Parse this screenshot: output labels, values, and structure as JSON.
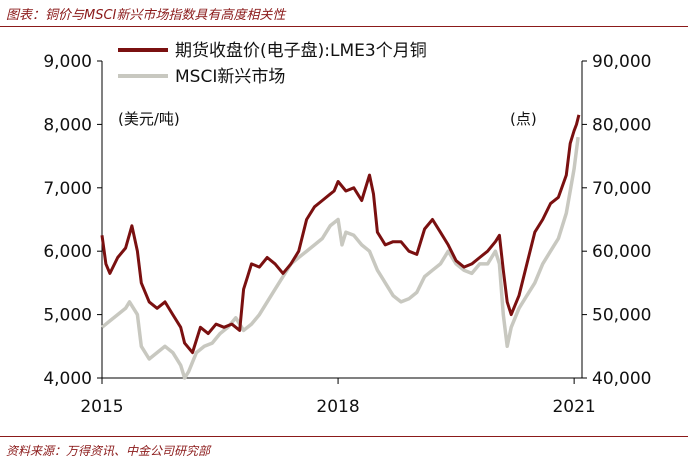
{
  "figure": {
    "title": "图表：铜价与MSCI新兴市场指数具有高度相关性",
    "source": "资料来源：万得资讯、中金公司研究部"
  },
  "colors": {
    "copper": "#7a1010",
    "msci": "#c8c8c0",
    "accent": "#8b1a1a"
  },
  "chart_data": {
    "type": "line",
    "x_ticks": [
      "2015",
      "2018",
      "2021"
    ],
    "x_tick_positions": [
      2015,
      2018,
      2021
    ],
    "xlim": [
      2015,
      2021.1
    ],
    "left_axis": {
      "unit": "(美元/吨)",
      "ylim": [
        4000,
        9000
      ],
      "ticks": [
        "4,000",
        "5,000",
        "6,000",
        "7,000",
        "8,000",
        "9,000"
      ]
    },
    "right_axis": {
      "unit": "(点)",
      "ylim": [
        40000,
        90000
      ],
      "ticks": [
        "40,000",
        "50,000",
        "60,000",
        "70,000",
        "80,000",
        "90,000"
      ]
    },
    "legend": {
      "position": "top-left",
      "entries": [
        "期货收盘价(电子盘):LME3个月铜",
        "MSCI新兴市场"
      ]
    },
    "series": [
      {
        "name": "期货收盘价(电子盘):LME3个月铜",
        "axis": "left",
        "x": [
          2015.0,
          2015.05,
          2015.1,
          2015.2,
          2015.3,
          2015.38,
          2015.45,
          2015.5,
          2015.6,
          2015.7,
          2015.8,
          2015.9,
          2016.0,
          2016.05,
          2016.15,
          2016.25,
          2016.35,
          2016.45,
          2016.55,
          2016.65,
          2016.75,
          2016.8,
          2016.85,
          2016.9,
          2017.0,
          2017.1,
          2017.2,
          2017.3,
          2017.4,
          2017.5,
          2017.6,
          2017.7,
          2017.8,
          2017.9,
          2017.95,
          2018.0,
          2018.1,
          2018.2,
          2018.3,
          2018.4,
          2018.45,
          2018.5,
          2018.6,
          2018.7,
          2018.8,
          2018.9,
          2019.0,
          2019.1,
          2019.2,
          2019.3,
          2019.4,
          2019.5,
          2019.6,
          2019.7,
          2019.8,
          2019.9,
          2020.0,
          2020.05,
          2020.1,
          2020.15,
          2020.2,
          2020.25,
          2020.3,
          2020.4,
          2020.5,
          2020.6,
          2020.7,
          2020.8,
          2020.9,
          2020.95,
          2021.0,
          2021.03,
          2021.06
        ],
        "y": [
          6250,
          5800,
          5650,
          5900,
          6050,
          6400,
          6000,
          5500,
          5200,
          5100,
          5200,
          5000,
          4800,
          4550,
          4400,
          4800,
          4700,
          4850,
          4800,
          4850,
          4750,
          5400,
          5600,
          5800,
          5750,
          5900,
          5800,
          5650,
          5800,
          6000,
          6500,
          6700,
          6800,
          6900,
          6950,
          7100,
          6950,
          7000,
          6800,
          7200,
          6900,
          6300,
          6100,
          6150,
          6150,
          6000,
          5950,
          6350,
          6500,
          6300,
          6100,
          5850,
          5750,
          5800,
          5900,
          6000,
          6150,
          6250,
          5700,
          5200,
          5000,
          5150,
          5300,
          5800,
          6300,
          6500,
          6750,
          6850,
          7200,
          7700,
          7900,
          8000,
          8150
        ]
      },
      {
        "name": "MSCI新兴市场",
        "axis": "right",
        "x": [
          2015.0,
          2015.1,
          2015.2,
          2015.3,
          2015.35,
          2015.45,
          2015.5,
          2015.6,
          2015.7,
          2015.8,
          2015.9,
          2016.0,
          2016.05,
          2016.1,
          2016.2,
          2016.3,
          2016.4,
          2016.5,
          2016.6,
          2016.7,
          2016.8,
          2016.9,
          2017.0,
          2017.1,
          2017.2,
          2017.3,
          2017.4,
          2017.5,
          2017.6,
          2017.7,
          2017.8,
          2017.9,
          2018.0,
          2018.05,
          2018.1,
          2018.2,
          2018.3,
          2018.4,
          2018.5,
          2018.6,
          2018.7,
          2018.8,
          2018.9,
          2019.0,
          2019.1,
          2019.2,
          2019.3,
          2019.4,
          2019.5,
          2019.6,
          2019.7,
          2019.8,
          2019.9,
          2020.0,
          2020.05,
          2020.1,
          2020.15,
          2020.2,
          2020.3,
          2020.4,
          2020.5,
          2020.6,
          2020.7,
          2020.8,
          2020.9,
          2021.0,
          2021.05
        ],
        "y": [
          48000,
          49000,
          50000,
          51000,
          52000,
          50000,
          45000,
          43000,
          44000,
          45000,
          44000,
          42000,
          40000,
          41000,
          44000,
          45000,
          45500,
          47000,
          48000,
          49500,
          47500,
          48500,
          50000,
          52000,
          54000,
          56000,
          58000,
          59000,
          60000,
          61000,
          62000,
          64000,
          65000,
          61000,
          63000,
          62500,
          61000,
          60000,
          57000,
          55000,
          53000,
          52000,
          52500,
          53500,
          56000,
          57000,
          58000,
          60000,
          58000,
          57000,
          56500,
          58000,
          58000,
          60000,
          58000,
          50000,
          45000,
          48000,
          51000,
          53000,
          55000,
          58000,
          60000,
          62000,
          66000,
          73000,
          78000
        ]
      }
    ]
  }
}
